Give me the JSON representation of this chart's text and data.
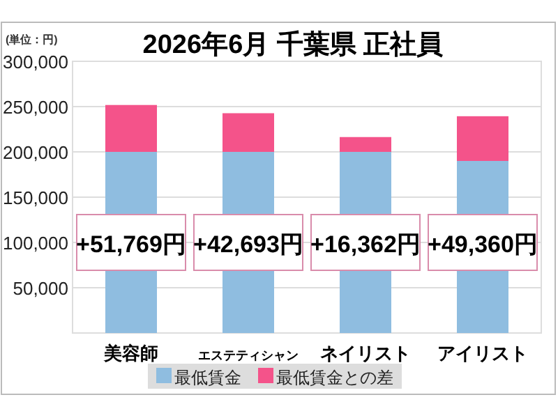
{
  "chart_data": {
    "type": "bar",
    "stacked": true,
    "title": "2026年6月 千葉県 正社員",
    "annotations": [
      "(単位：円)",
      "+51,769円",
      "+42,693円",
      "+16,362円",
      "+49,360円"
    ],
    "categories": [
      "美容師",
      "エステティシャン",
      "ネイリスト",
      "アイリスト"
    ],
    "series": [
      {
        "name": "最低賃金",
        "color": "#8fbde0",
        "values": [
          200000,
          200000,
          200000,
          190000
        ]
      },
      {
        "name": "最低賃金との差",
        "color": "#f4538a",
        "values": [
          51769,
          42693,
          16362,
          49360
        ]
      }
    ],
    "ylim": [
      0,
      300000
    ],
    "yticks": [
      {
        "value": 50000,
        "label": "50,000"
      },
      {
        "value": 100000,
        "label": "100,000"
      },
      {
        "value": 150000,
        "label": "150,000"
      },
      {
        "value": 200000,
        "label": "200,000"
      },
      {
        "value": 250000,
        "label": "250,000"
      },
      {
        "value": 300000,
        "label": "300,000"
      }
    ],
    "grid": "y",
    "legend": "bottom"
  }
}
